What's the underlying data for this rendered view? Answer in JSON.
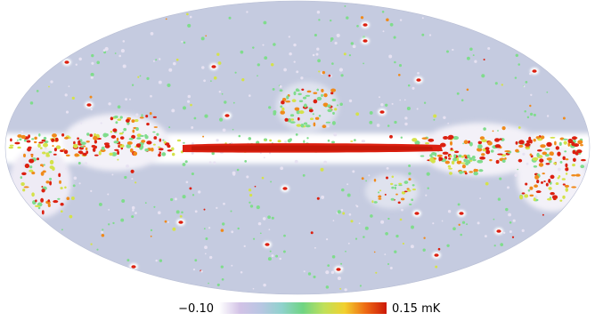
{
  "map": {
    "projection": "mollweide",
    "background_color": "#c5cbe0",
    "plane_color": "#ffffff"
  },
  "colorbar": {
    "min_label": "−0.10",
    "max_label": "0.15 mK",
    "colors": [
      "#ffffff",
      "#d2c2e6",
      "#b8c6e2",
      "#8fd2cc",
      "#6fd483",
      "#bfe05a",
      "#f2d12e",
      "#ee6a14",
      "#cc1808"
    ]
  },
  "legend_colors": {
    "cold": "#e7e2f2",
    "green": "#7fdc8c",
    "yellow": "#d4e24a",
    "orange": "#f08a1a",
    "red": "#dc2010"
  }
}
